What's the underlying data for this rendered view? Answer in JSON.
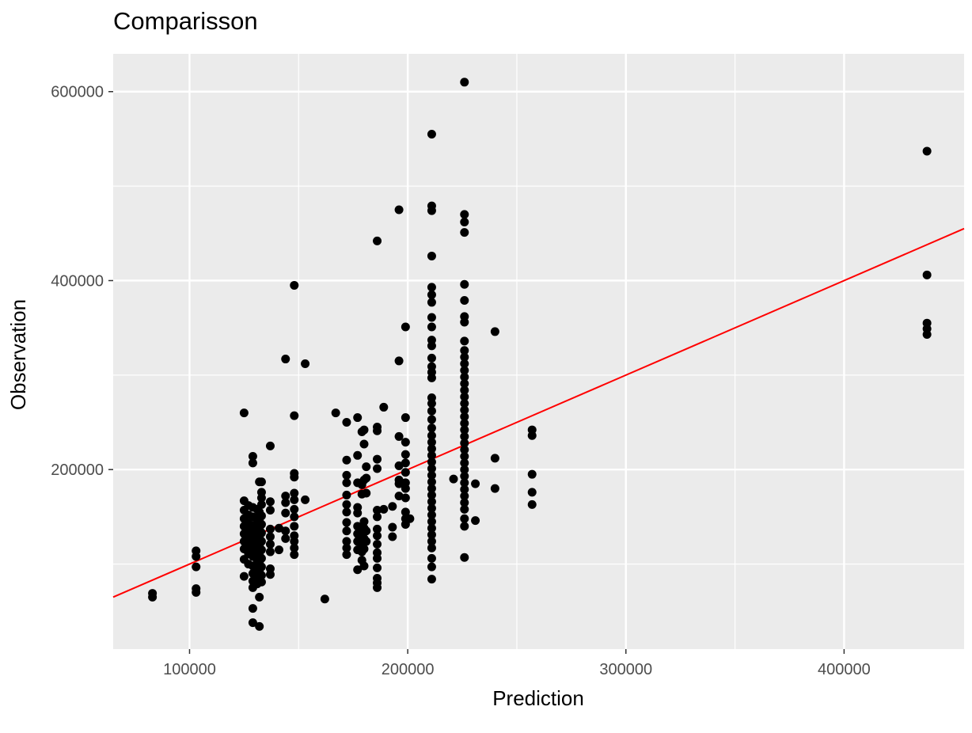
{
  "chart_data": {
    "type": "scatter",
    "title": "Comparisson",
    "xlabel": "Prediction",
    "ylabel": "Observation",
    "xlim": [
      65000,
      455000
    ],
    "ylim": [
      10000,
      640000
    ],
    "x_ticks": [
      100000,
      200000,
      300000,
      400000
    ],
    "x_tick_labels": [
      "100000",
      "200000",
      "300000",
      "400000"
    ],
    "x_minor_ticks": [
      150000,
      250000,
      350000
    ],
    "y_ticks": [
      200000,
      400000,
      600000
    ],
    "y_tick_labels": [
      "200000",
      "400000",
      "600000"
    ],
    "y_minor_ticks": [
      100000,
      300000,
      500000
    ],
    "grid": true,
    "panel_background": "#ebebeb",
    "grid_color": "#ffffff",
    "point_color": "#000000",
    "line_color": "#ff0000",
    "reference_line": {
      "type": "identity",
      "from": 65000,
      "to": 455000
    },
    "points": [
      {
        "x": 83000,
        "y": 65000
      },
      {
        "x": 83000,
        "y": 69000
      },
      {
        "x": 103000,
        "y": 70000
      },
      {
        "x": 103000,
        "y": 74000
      },
      {
        "x": 103000,
        "y": 97000
      },
      {
        "x": 103000,
        "y": 108000
      },
      {
        "x": 103000,
        "y": 114000
      },
      {
        "x": 125000,
        "y": 260000
      },
      {
        "x": 125000,
        "y": 167000
      },
      {
        "x": 125000,
        "y": 157000
      },
      {
        "x": 125000,
        "y": 148000
      },
      {
        "x": 125000,
        "y": 140000
      },
      {
        "x": 125000,
        "y": 132000
      },
      {
        "x": 125000,
        "y": 124000
      },
      {
        "x": 125000,
        "y": 116000
      },
      {
        "x": 125000,
        "y": 105000
      },
      {
        "x": 125000,
        "y": 87000
      },
      {
        "x": 127000,
        "y": 162000
      },
      {
        "x": 127000,
        "y": 152000
      },
      {
        "x": 127000,
        "y": 143000
      },
      {
        "x": 127000,
        "y": 135000
      },
      {
        "x": 127000,
        "y": 127000
      },
      {
        "x": 127000,
        "y": 119000
      },
      {
        "x": 127000,
        "y": 111000
      },
      {
        "x": 127000,
        "y": 100000
      },
      {
        "x": 129000,
        "y": 214000
      },
      {
        "x": 129000,
        "y": 207000
      },
      {
        "x": 129000,
        "y": 160000
      },
      {
        "x": 129000,
        "y": 150000
      },
      {
        "x": 129000,
        "y": 141000
      },
      {
        "x": 129000,
        "y": 133000
      },
      {
        "x": 129000,
        "y": 125000
      },
      {
        "x": 129000,
        "y": 117000
      },
      {
        "x": 129000,
        "y": 108000
      },
      {
        "x": 129000,
        "y": 98000
      },
      {
        "x": 129000,
        "y": 90000
      },
      {
        "x": 129000,
        "y": 82000
      },
      {
        "x": 129000,
        "y": 75000
      },
      {
        "x": 129000,
        "y": 53000
      },
      {
        "x": 129000,
        "y": 38000
      },
      {
        "x": 131000,
        "y": 158000
      },
      {
        "x": 131000,
        "y": 148000
      },
      {
        "x": 131000,
        "y": 140000
      },
      {
        "x": 131000,
        "y": 131000
      },
      {
        "x": 131000,
        "y": 122000
      },
      {
        "x": 131000,
        "y": 113000
      },
      {
        "x": 131000,
        "y": 104000
      },
      {
        "x": 131000,
        "y": 95000
      },
      {
        "x": 131000,
        "y": 86000
      },
      {
        "x": 131000,
        "y": 79000
      },
      {
        "x": 132000,
        "y": 187000
      },
      {
        "x": 132000,
        "y": 155000
      },
      {
        "x": 132000,
        "y": 146000
      },
      {
        "x": 132000,
        "y": 137000
      },
      {
        "x": 132000,
        "y": 128000
      },
      {
        "x": 132000,
        "y": 119000
      },
      {
        "x": 132000,
        "y": 110000
      },
      {
        "x": 132000,
        "y": 101000
      },
      {
        "x": 132000,
        "y": 92000
      },
      {
        "x": 132000,
        "y": 83000
      },
      {
        "x": 132000,
        "y": 65000
      },
      {
        "x": 132000,
        "y": 34000
      },
      {
        "x": 133000,
        "y": 187000
      },
      {
        "x": 133000,
        "y": 176000
      },
      {
        "x": 133000,
        "y": 170000
      },
      {
        "x": 133000,
        "y": 163000
      },
      {
        "x": 133000,
        "y": 151000
      },
      {
        "x": 133000,
        "y": 142000
      },
      {
        "x": 133000,
        "y": 133000
      },
      {
        "x": 133000,
        "y": 124000
      },
      {
        "x": 133000,
        "y": 115000
      },
      {
        "x": 133000,
        "y": 106000
      },
      {
        "x": 133000,
        "y": 97000
      },
      {
        "x": 133000,
        "y": 88000
      },
      {
        "x": 133000,
        "y": 81000
      },
      {
        "x": 137000,
        "y": 225000
      },
      {
        "x": 137000,
        "y": 166000
      },
      {
        "x": 137000,
        "y": 157000
      },
      {
        "x": 137000,
        "y": 137000
      },
      {
        "x": 137000,
        "y": 129000
      },
      {
        "x": 137000,
        "y": 121000
      },
      {
        "x": 137000,
        "y": 113000
      },
      {
        "x": 137000,
        "y": 95000
      },
      {
        "x": 137000,
        "y": 89000
      },
      {
        "x": 141000,
        "y": 138000
      },
      {
        "x": 141000,
        "y": 115000
      },
      {
        "x": 144000,
        "y": 317000
      },
      {
        "x": 144000,
        "y": 172000
      },
      {
        "x": 144000,
        "y": 165000
      },
      {
        "x": 144000,
        "y": 154000
      },
      {
        "x": 144000,
        "y": 135000
      },
      {
        "x": 144000,
        "y": 127000
      },
      {
        "x": 148000,
        "y": 395000
      },
      {
        "x": 148000,
        "y": 257000
      },
      {
        "x": 148000,
        "y": 196000
      },
      {
        "x": 148000,
        "y": 192000
      },
      {
        "x": 148000,
        "y": 175000
      },
      {
        "x": 148000,
        "y": 168000
      },
      {
        "x": 148000,
        "y": 158000
      },
      {
        "x": 148000,
        "y": 150000
      },
      {
        "x": 148000,
        "y": 140000
      },
      {
        "x": 148000,
        "y": 130000
      },
      {
        "x": 148000,
        "y": 124000
      },
      {
        "x": 148000,
        "y": 117000
      },
      {
        "x": 148000,
        "y": 110000
      },
      {
        "x": 153000,
        "y": 312000
      },
      {
        "x": 153000,
        "y": 168000
      },
      {
        "x": 162000,
        "y": 63000
      },
      {
        "x": 167000,
        "y": 260000
      },
      {
        "x": 172000,
        "y": 250000
      },
      {
        "x": 172000,
        "y": 210000
      },
      {
        "x": 172000,
        "y": 194000
      },
      {
        "x": 172000,
        "y": 186000
      },
      {
        "x": 172000,
        "y": 173000
      },
      {
        "x": 172000,
        "y": 163000
      },
      {
        "x": 172000,
        "y": 155000
      },
      {
        "x": 172000,
        "y": 144000
      },
      {
        "x": 172000,
        "y": 135000
      },
      {
        "x": 172000,
        "y": 124000
      },
      {
        "x": 172000,
        "y": 117000
      },
      {
        "x": 172000,
        "y": 110000
      },
      {
        "x": 177000,
        "y": 255000
      },
      {
        "x": 177000,
        "y": 215000
      },
      {
        "x": 177000,
        "y": 186000
      },
      {
        "x": 177000,
        "y": 160000
      },
      {
        "x": 177000,
        "y": 154000
      },
      {
        "x": 177000,
        "y": 140000
      },
      {
        "x": 177000,
        "y": 132000
      },
      {
        "x": 177000,
        "y": 124000
      },
      {
        "x": 177000,
        "y": 115000
      },
      {
        "x": 177000,
        "y": 94000
      },
      {
        "x": 179000,
        "y": 240000
      },
      {
        "x": 179000,
        "y": 184000
      },
      {
        "x": 179000,
        "y": 174000
      },
      {
        "x": 179000,
        "y": 137000
      },
      {
        "x": 179000,
        "y": 130000
      },
      {
        "x": 179000,
        "y": 121000
      },
      {
        "x": 179000,
        "y": 113000
      },
      {
        "x": 179000,
        "y": 104000
      },
      {
        "x": 180000,
        "y": 242000
      },
      {
        "x": 180000,
        "y": 227000
      },
      {
        "x": 180000,
        "y": 189000
      },
      {
        "x": 180000,
        "y": 145000
      },
      {
        "x": 180000,
        "y": 138000
      },
      {
        "x": 180000,
        "y": 127000
      },
      {
        "x": 180000,
        "y": 116000
      },
      {
        "x": 180000,
        "y": 98000
      },
      {
        "x": 181000,
        "y": 203000
      },
      {
        "x": 181000,
        "y": 191000
      },
      {
        "x": 181000,
        "y": 175000
      },
      {
        "x": 181000,
        "y": 135000
      },
      {
        "x": 181000,
        "y": 124000
      },
      {
        "x": 186000,
        "y": 442000
      },
      {
        "x": 186000,
        "y": 245000
      },
      {
        "x": 186000,
        "y": 241000
      },
      {
        "x": 186000,
        "y": 211000
      },
      {
        "x": 186000,
        "y": 201000
      },
      {
        "x": 186000,
        "y": 157000
      },
      {
        "x": 186000,
        "y": 150000
      },
      {
        "x": 186000,
        "y": 137000
      },
      {
        "x": 186000,
        "y": 130000
      },
      {
        "x": 186000,
        "y": 121000
      },
      {
        "x": 186000,
        "y": 112000
      },
      {
        "x": 186000,
        "y": 106000
      },
      {
        "x": 186000,
        "y": 96000
      },
      {
        "x": 186000,
        "y": 85000
      },
      {
        "x": 186000,
        "y": 80000
      },
      {
        "x": 186000,
        "y": 75000
      },
      {
        "x": 189000,
        "y": 266000
      },
      {
        "x": 189000,
        "y": 158000
      },
      {
        "x": 193000,
        "y": 161000
      },
      {
        "x": 193000,
        "y": 139000
      },
      {
        "x": 193000,
        "y": 129000
      },
      {
        "x": 196000,
        "y": 475000
      },
      {
        "x": 196000,
        "y": 315000
      },
      {
        "x": 196000,
        "y": 235000
      },
      {
        "x": 196000,
        "y": 204000
      },
      {
        "x": 196000,
        "y": 189000
      },
      {
        "x": 196000,
        "y": 185000
      },
      {
        "x": 196000,
        "y": 172000
      },
      {
        "x": 199000,
        "y": 351000
      },
      {
        "x": 199000,
        "y": 255000
      },
      {
        "x": 199000,
        "y": 229000
      },
      {
        "x": 199000,
        "y": 216000
      },
      {
        "x": 199000,
        "y": 207000
      },
      {
        "x": 199000,
        "y": 197000
      },
      {
        "x": 199000,
        "y": 186000
      },
      {
        "x": 199000,
        "y": 180000
      },
      {
        "x": 199000,
        "y": 170000
      },
      {
        "x": 199000,
        "y": 155000
      },
      {
        "x": 199000,
        "y": 148000
      },
      {
        "x": 199000,
        "y": 142000
      },
      {
        "x": 201000,
        "y": 148000
      },
      {
        "x": 211000,
        "y": 555000
      },
      {
        "x": 211000,
        "y": 479000
      },
      {
        "x": 211000,
        "y": 474000
      },
      {
        "x": 211000,
        "y": 426000
      },
      {
        "x": 211000,
        "y": 393000
      },
      {
        "x": 211000,
        "y": 385000
      },
      {
        "x": 211000,
        "y": 377000
      },
      {
        "x": 211000,
        "y": 361000
      },
      {
        "x": 211000,
        "y": 351000
      },
      {
        "x": 211000,
        "y": 337000
      },
      {
        "x": 211000,
        "y": 331000
      },
      {
        "x": 211000,
        "y": 318000
      },
      {
        "x": 211000,
        "y": 309000
      },
      {
        "x": 211000,
        "y": 303000
      },
      {
        "x": 211000,
        "y": 297000
      },
      {
        "x": 211000,
        "y": 276000
      },
      {
        "x": 211000,
        "y": 270000
      },
      {
        "x": 211000,
        "y": 262000
      },
      {
        "x": 211000,
        "y": 253000
      },
      {
        "x": 211000,
        "y": 244000
      },
      {
        "x": 211000,
        "y": 236000
      },
      {
        "x": 211000,
        "y": 229000
      },
      {
        "x": 211000,
        "y": 222000
      },
      {
        "x": 211000,
        "y": 215000
      },
      {
        "x": 211000,
        "y": 208000
      },
      {
        "x": 211000,
        "y": 201000
      },
      {
        "x": 211000,
        "y": 194000
      },
      {
        "x": 211000,
        "y": 187000
      },
      {
        "x": 211000,
        "y": 180000
      },
      {
        "x": 211000,
        "y": 173000
      },
      {
        "x": 211000,
        "y": 166000
      },
      {
        "x": 211000,
        "y": 159000
      },
      {
        "x": 211000,
        "y": 152000
      },
      {
        "x": 211000,
        "y": 145000
      },
      {
        "x": 211000,
        "y": 138000
      },
      {
        "x": 211000,
        "y": 131000
      },
      {
        "x": 211000,
        "y": 124000
      },
      {
        "x": 211000,
        "y": 117000
      },
      {
        "x": 211000,
        "y": 106000
      },
      {
        "x": 211000,
        "y": 97000
      },
      {
        "x": 211000,
        "y": 84000
      },
      {
        "x": 221000,
        "y": 190000
      },
      {
        "x": 226000,
        "y": 610000
      },
      {
        "x": 226000,
        "y": 470000
      },
      {
        "x": 226000,
        "y": 462000
      },
      {
        "x": 226000,
        "y": 451000
      },
      {
        "x": 226000,
        "y": 396000
      },
      {
        "x": 226000,
        "y": 379000
      },
      {
        "x": 226000,
        "y": 362000
      },
      {
        "x": 226000,
        "y": 356000
      },
      {
        "x": 226000,
        "y": 336000
      },
      {
        "x": 226000,
        "y": 326000
      },
      {
        "x": 226000,
        "y": 319000
      },
      {
        "x": 226000,
        "y": 312000
      },
      {
        "x": 226000,
        "y": 305000
      },
      {
        "x": 226000,
        "y": 298000
      },
      {
        "x": 226000,
        "y": 291000
      },
      {
        "x": 226000,
        "y": 284000
      },
      {
        "x": 226000,
        "y": 277000
      },
      {
        "x": 226000,
        "y": 270000
      },
      {
        "x": 226000,
        "y": 263000
      },
      {
        "x": 226000,
        "y": 256000
      },
      {
        "x": 226000,
        "y": 249000
      },
      {
        "x": 226000,
        "y": 242000
      },
      {
        "x": 226000,
        "y": 235000
      },
      {
        "x": 226000,
        "y": 228000
      },
      {
        "x": 226000,
        "y": 221000
      },
      {
        "x": 226000,
        "y": 214000
      },
      {
        "x": 226000,
        "y": 207000
      },
      {
        "x": 226000,
        "y": 200000
      },
      {
        "x": 226000,
        "y": 193000
      },
      {
        "x": 226000,
        "y": 186000
      },
      {
        "x": 226000,
        "y": 179000
      },
      {
        "x": 226000,
        "y": 172000
      },
      {
        "x": 226000,
        "y": 165000
      },
      {
        "x": 226000,
        "y": 158000
      },
      {
        "x": 226000,
        "y": 148000
      },
      {
        "x": 226000,
        "y": 140000
      },
      {
        "x": 226000,
        "y": 107000
      },
      {
        "x": 231000,
        "y": 185000
      },
      {
        "x": 231000,
        "y": 146000
      },
      {
        "x": 240000,
        "y": 346000
      },
      {
        "x": 240000,
        "y": 212000
      },
      {
        "x": 240000,
        "y": 180000
      },
      {
        "x": 257000,
        "y": 242000
      },
      {
        "x": 257000,
        "y": 236000
      },
      {
        "x": 257000,
        "y": 195000
      },
      {
        "x": 257000,
        "y": 176000
      },
      {
        "x": 257000,
        "y": 163000
      },
      {
        "x": 438000,
        "y": 537000
      },
      {
        "x": 438000,
        "y": 406000
      },
      {
        "x": 438000,
        "y": 355000
      },
      {
        "x": 438000,
        "y": 349000
      },
      {
        "x": 438000,
        "y": 343000
      }
    ]
  }
}
